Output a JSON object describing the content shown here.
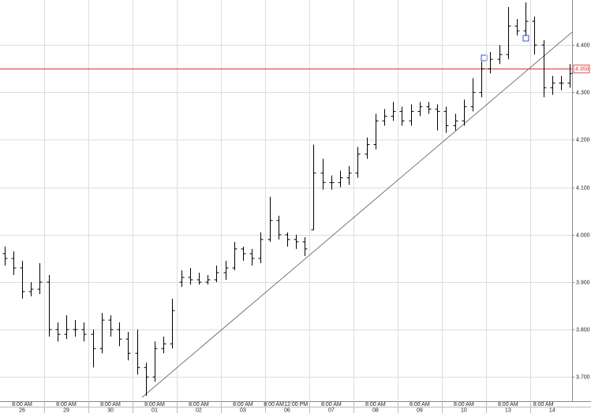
{
  "chart_data": {
    "type": "ohlc",
    "color": "#000000",
    "x": [
      -0.4,
      -0.2,
      0,
      0.2,
      0.4,
      0.6,
      0.8,
      1,
      1.2,
      1.4,
      1.6,
      1.8,
      2,
      2.2,
      2.4,
      2.6,
      2.8,
      3,
      3.2,
      3.4,
      3.6,
      3.8,
      4,
      4.2,
      4.4,
      4.6,
      4.8,
      5,
      5.2,
      5.4,
      5.6,
      5.8,
      6,
      6.2,
      6.4,
      6.6,
      6.8,
      7,
      7.2,
      7.4,
      7.6,
      7.8,
      8,
      8.2,
      8.4,
      8.6,
      8.8,
      9,
      9.2,
      9.4,
      9.6,
      9.8,
      10,
      10.2,
      10.4,
      10.6,
      10.8,
      11,
      11.2,
      11.4,
      11.6,
      11.8,
      12,
      12.2,
      12.4
    ],
    "open": [
      3.96,
      3.95,
      3.93,
      3.88,
      3.885,
      3.9,
      3.8,
      3.79,
      3.8,
      3.8,
      3.79,
      3.76,
      3.82,
      3.8,
      3.78,
      3.75,
      3.72,
      3.7,
      3.76,
      3.77,
      3.9,
      3.91,
      3.905,
      3.9,
      3.905,
      3.92,
      3.93,
      3.97,
      3.96,
      3.95,
      3.99,
      4.03,
      4.0,
      3.99,
      3.985,
      4.01,
      4.13,
      4.11,
      4.11,
      4.12,
      4.13,
      4.17,
      4.19,
      4.24,
      4.25,
      4.26,
      4.24,
      4.26,
      4.27,
      4.265,
      4.26,
      4.23,
      4.24,
      4.27,
      4.3,
      4.35,
      4.37,
      4.38,
      4.44,
      4.43,
      4.45,
      4.4,
      4.31,
      4.32,
      4.32
    ],
    "high": [
      3.975,
      3.965,
      3.945,
      3.9,
      3.94,
      3.915,
      3.815,
      3.83,
      3.82,
      3.815,
      3.8,
      3.835,
      3.83,
      3.815,
      3.795,
      3.8,
      3.73,
      3.775,
      3.785,
      3.865,
      3.925,
      3.93,
      3.92,
      3.915,
      3.935,
      3.945,
      3.985,
      3.975,
      3.97,
      4.005,
      4.08,
      4.04,
      4.005,
      4.0,
      3.995,
      4.19,
      4.16,
      4.125,
      4.135,
      4.145,
      4.185,
      4.205,
      4.255,
      4.265,
      4.28,
      4.27,
      4.275,
      4.28,
      4.28,
      4.275,
      4.27,
      4.255,
      4.285,
      4.33,
      4.365,
      4.385,
      4.4,
      4.48,
      4.455,
      4.49,
      4.46,
      4.41,
      4.335,
      4.335,
      4.36
    ],
    "low": [
      3.935,
      3.915,
      3.865,
      3.87,
      3.875,
      3.785,
      3.775,
      3.78,
      3.785,
      3.775,
      3.72,
      3.75,
      3.785,
      3.765,
      3.735,
      3.705,
      3.66,
      3.69,
      3.75,
      3.76,
      3.89,
      3.895,
      3.895,
      3.895,
      3.9,
      3.905,
      3.925,
      3.945,
      3.935,
      3.94,
      3.985,
      3.99,
      3.975,
      3.97,
      3.955,
      4.01,
      4.095,
      4.095,
      4.1,
      4.105,
      4.12,
      4.16,
      4.18,
      4.23,
      4.24,
      4.23,
      4.23,
      4.25,
      4.255,
      4.22,
      4.215,
      4.22,
      4.23,
      4.26,
      4.29,
      4.34,
      4.36,
      4.37,
      4.42,
      4.42,
      4.38,
      4.29,
      4.295,
      4.305,
      4.31
    ],
    "close": [
      3.95,
      3.93,
      3.88,
      3.885,
      3.9,
      3.8,
      3.79,
      3.8,
      3.8,
      3.79,
      3.76,
      3.82,
      3.8,
      3.78,
      3.75,
      3.72,
      3.7,
      3.76,
      3.77,
      3.84,
      3.91,
      3.905,
      3.9,
      3.905,
      3.92,
      3.93,
      3.97,
      3.96,
      3.95,
      3.99,
      4.03,
      4.0,
      3.99,
      3.985,
      3.97,
      4.13,
      4.11,
      4.11,
      4.12,
      4.13,
      4.17,
      4.19,
      4.24,
      4.25,
      4.26,
      4.24,
      4.26,
      4.27,
      4.265,
      4.26,
      4.23,
      4.24,
      4.27,
      4.3,
      4.35,
      4.37,
      4.38,
      4.44,
      4.43,
      4.45,
      4.4,
      4.31,
      4.32,
      4.32,
      4.34
    ],
    "xlim": [
      -0.5,
      12.45
    ],
    "ylim": [
      3.649,
      4.495
    ],
    "yticks": [
      {
        "value": 3.7,
        "label": "3.700"
      },
      {
        "value": 3.8,
        "label": "3.800"
      },
      {
        "value": 3.9,
        "label": "3.900"
      },
      {
        "value": 4.0,
        "label": "4.000"
      },
      {
        "value": 4.1,
        "label": "4.100"
      },
      {
        "value": 4.2,
        "label": "4.200"
      },
      {
        "value": 4.3,
        "label": "4.300"
      },
      {
        "value": 4.4,
        "label": "4.400"
      }
    ],
    "xticks": [
      {
        "value": 0,
        "label": "8:00 AM"
      },
      {
        "value": 1,
        "label": "8:00 AM"
      },
      {
        "value": 2,
        "label": "8:00 AM"
      },
      {
        "value": 3,
        "label": "8:00 AM"
      },
      {
        "value": 4,
        "label": "8:00 AM"
      },
      {
        "value": 5,
        "label": "8:00 AM"
      },
      {
        "value": 5.7,
        "label": "8:00 AM"
      },
      {
        "value": 6.2,
        "label": "12:00 PM"
      },
      {
        "value": 7,
        "label": "8:00 AM"
      },
      {
        "value": 8,
        "label": "8:00 AM"
      },
      {
        "value": 9,
        "label": "8:00 AM"
      },
      {
        "value": 10,
        "label": "8:00 AM"
      },
      {
        "value": 11,
        "label": "8:00 AM"
      },
      {
        "value": 11.8,
        "label": "8:00 AM"
      }
    ],
    "date_ticks": [
      {
        "value": 0,
        "label": "26"
      },
      {
        "value": 1,
        "label": "29"
      },
      {
        "value": 2,
        "label": "30"
      },
      {
        "value": 3,
        "label": "01"
      },
      {
        "value": 4,
        "label": "02"
      },
      {
        "value": 5,
        "label": "03"
      },
      {
        "value": 6,
        "label": "06"
      },
      {
        "value": 7,
        "label": "07"
      },
      {
        "value": 8,
        "label": "08"
      },
      {
        "value": 9,
        "label": "09"
      },
      {
        "value": 10,
        "label": "10"
      },
      {
        "value": 11,
        "label": "13"
      },
      {
        "value": 12,
        "label": "14"
      }
    ],
    "xgrid": [
      0.5,
      1.5,
      2.5,
      3.5,
      4.5,
      5.5,
      6.5,
      7.5,
      8.5,
      9.5,
      10.5,
      11.5
    ],
    "grid": true,
    "trendline": {
      "x": [
        2.714,
        12.446
      ],
      "y": [
        3.657,
        4.427
      ],
      "color": "#555555"
    },
    "price_line": {
      "value": 4.35,
      "label": "4.350",
      "color": "#d9302a"
    }
  }
}
